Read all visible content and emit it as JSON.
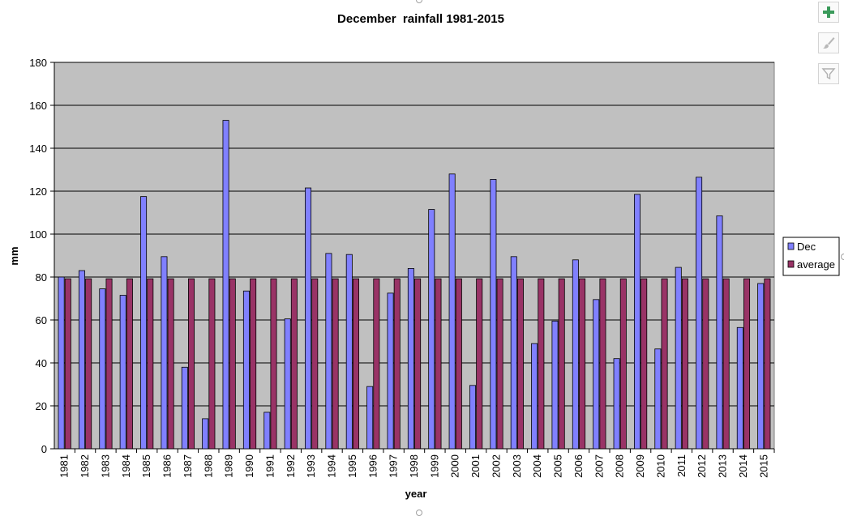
{
  "chart_data": {
    "type": "bar",
    "title": "December  rainfall 1981-2015",
    "xlabel": "year",
    "ylabel": "mm",
    "ylim": [
      0,
      180
    ],
    "yticks": [
      0,
      20,
      40,
      60,
      80,
      100,
      120,
      140,
      160,
      180
    ],
    "grid": true,
    "legend_position": "right",
    "categories": [
      "1981",
      "1982",
      "1983",
      "1984",
      "1985",
      "1986",
      "1987",
      "1988",
      "1989",
      "1990",
      "1991",
      "1992",
      "1993",
      "1994",
      "1995",
      "1996",
      "1997",
      "1998",
      "1999",
      "2000",
      "2001",
      "2002",
      "2003",
      "2004",
      "2005",
      "2006",
      "2007",
      "2008",
      "2009",
      "2010",
      "2011",
      "2012",
      "2013",
      "2014",
      "2015"
    ],
    "series": [
      {
        "name": "Dec",
        "color": "#8080ff",
        "values": [
          80,
          83,
          74.5,
          71.5,
          117.5,
          89.5,
          38,
          14,
          153,
          73.5,
          17,
          60.5,
          121.5,
          91,
          90.5,
          29,
          72.5,
          84,
          111.5,
          128,
          29.5,
          125.5,
          89.5,
          49,
          59.5,
          88,
          69.5,
          42,
          118.5,
          46.5,
          84.5,
          126.5,
          108.5,
          56.5,
          77
        ]
      },
      {
        "name": "average",
        "color": "#993366",
        "values": [
          79.2,
          79.2,
          79.2,
          79.2,
          79.2,
          79.2,
          79.2,
          79.2,
          79.2,
          79.2,
          79.2,
          79.2,
          79.2,
          79.2,
          79.2,
          79.2,
          79.2,
          79.2,
          79.2,
          79.2,
          79.2,
          79.2,
          79.2,
          79.2,
          79.2,
          79.2,
          79.2,
          79.2,
          79.2,
          79.2,
          79.2,
          79.2,
          79.2,
          79.2,
          79.2
        ]
      }
    ],
    "plot_bg": "#c0c0c0"
  },
  "toolbar": {
    "icons": [
      "plus-icon",
      "brush-icon",
      "filter-icon"
    ]
  }
}
